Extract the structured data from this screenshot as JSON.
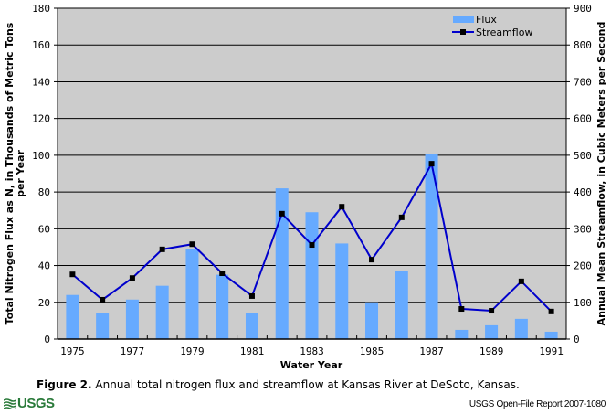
{
  "chart_data": {
    "type": "bar",
    "title": "",
    "xlabel": "Water Year",
    "ylabel": "Total Nitrogen Flux as N, in Thousands of Metric Tons per Year",
    "ylabel_line1": "Total Nitrogen Flux as N, in Thousands of Metric Tons",
    "ylabel_line2": "per Year",
    "y2label": "Annual Mean Streamflow, in Cubic Meters per Second",
    "ylim": [
      0,
      180
    ],
    "y2lim": [
      0,
      900
    ],
    "yticks": [
      "0",
      "20",
      "40",
      "60",
      "80",
      "100",
      "120",
      "140",
      "160",
      "180"
    ],
    "y2ticks": [
      "0",
      "100",
      "200",
      "300",
      "400",
      "500",
      "600",
      "700",
      "800",
      "900"
    ],
    "categories": [
      "1975",
      "1976",
      "1977",
      "1978",
      "1979",
      "1980",
      "1981",
      "1982",
      "1983",
      "1984",
      "1985",
      "1986",
      "1987",
      "1988",
      "1989",
      "1990",
      "1991"
    ],
    "xtick_labels": [
      "1975",
      "",
      "1977",
      "",
      "1979",
      "",
      "1981",
      "",
      "1983",
      "",
      "1985",
      "",
      "1987",
      "",
      "1989",
      "",
      "1991"
    ],
    "grid": true,
    "legend_position": "top-right",
    "series": [
      {
        "name": "Flux",
        "type": "bar",
        "axis": "left",
        "color": "#66aaff",
        "values": [
          24,
          14,
          21.5,
          29,
          49,
          35,
          14,
          82,
          69,
          52,
          20,
          37,
          100.5,
          5,
          7.5,
          11,
          4
        ]
      },
      {
        "name": "Streamflow",
        "type": "line",
        "axis": "right",
        "color": "#0000cc",
        "marker_color": "#000000",
        "values": [
          176,
          107,
          166,
          244,
          258,
          179,
          117,
          341,
          256,
          360,
          216,
          331,
          477,
          82,
          77,
          157,
          75
        ]
      }
    ]
  },
  "caption": {
    "label": "Figure 2.",
    "text": " Annual total nitrogen flux and streamflow at Kansas River at DeSoto, Kansas."
  },
  "footer": {
    "logo_text": "USGS",
    "report": "USGS Open-File Report 2007-1080"
  },
  "colors": {
    "plot_bg": "#cccccc",
    "bar": "#66aaff",
    "line": "#0000cc"
  }
}
